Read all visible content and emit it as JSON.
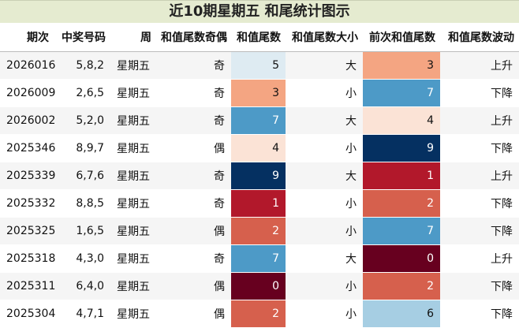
{
  "title": "近10期星期五 和尾统计图示",
  "headers": [
    "期次",
    "中奖号码",
    "周",
    "和值尾数奇偶",
    "和值尾数",
    "和值尾数大小",
    "前次和值尾数",
    "和值尾数波动"
  ],
  "rows": [
    {
      "issue": "2026016",
      "numbers": "5,8,2",
      "week": "星期五",
      "parity": "奇",
      "tail": "5",
      "size": "大",
      "prev": "3",
      "trend": "上升"
    },
    {
      "issue": "2026009",
      "numbers": "2,6,5",
      "week": "星期五",
      "parity": "奇",
      "tail": "3",
      "size": "小",
      "prev": "7",
      "trend": "下降"
    },
    {
      "issue": "2026002",
      "numbers": "5,2,0",
      "week": "星期五",
      "parity": "奇",
      "tail": "7",
      "size": "大",
      "prev": "4",
      "trend": "上升"
    },
    {
      "issue": "2025346",
      "numbers": "8,9,7",
      "week": "星期五",
      "parity": "偶",
      "tail": "4",
      "size": "小",
      "prev": "9",
      "trend": "下降"
    },
    {
      "issue": "2025339",
      "numbers": "6,7,6",
      "week": "星期五",
      "parity": "奇",
      "tail": "9",
      "size": "大",
      "prev": "1",
      "trend": "上升"
    },
    {
      "issue": "2025332",
      "numbers": "8,8,5",
      "week": "星期五",
      "parity": "奇",
      "tail": "1",
      "size": "小",
      "prev": "2",
      "trend": "下降"
    },
    {
      "issue": "2025325",
      "numbers": "1,6,5",
      "week": "星期五",
      "parity": "偶",
      "tail": "2",
      "size": "小",
      "prev": "7",
      "trend": "下降"
    },
    {
      "issue": "2025318",
      "numbers": "4,3,0",
      "week": "星期五",
      "parity": "奇",
      "tail": "7",
      "size": "大",
      "prev": "0",
      "trend": "上升"
    },
    {
      "issue": "2025311",
      "numbers": "6,4,0",
      "week": "星期五",
      "parity": "偶",
      "tail": "0",
      "size": "小",
      "prev": "2",
      "trend": "下降"
    },
    {
      "issue": "2025304",
      "numbers": "4,7,1",
      "week": "星期五",
      "parity": "偶",
      "tail": "2",
      "size": "小",
      "prev": "6",
      "trend": "下降"
    }
  ],
  "digit_colors": {
    "0": {
      "bg": "#67001f",
      "fg": "#ffffff"
    },
    "1": {
      "bg": "#b2182b",
      "fg": "#ffffff"
    },
    "2": {
      "bg": "#d6604d",
      "fg": "#ffffff"
    },
    "3": {
      "bg": "#f4a582",
      "fg": "#111111"
    },
    "4": {
      "bg": "#fbe3d6",
      "fg": "#111111"
    },
    "5": {
      "bg": "#deebf2",
      "fg": "#111111"
    },
    "6": {
      "bg": "#a6cee3",
      "fg": "#111111"
    },
    "7": {
      "bg": "#4d9ac7",
      "fg": "#ffffff"
    },
    "8": {
      "bg": "#2166ac",
      "fg": "#ffffff"
    },
    "9": {
      "bg": "#053061",
      "fg": "#ffffff"
    }
  }
}
